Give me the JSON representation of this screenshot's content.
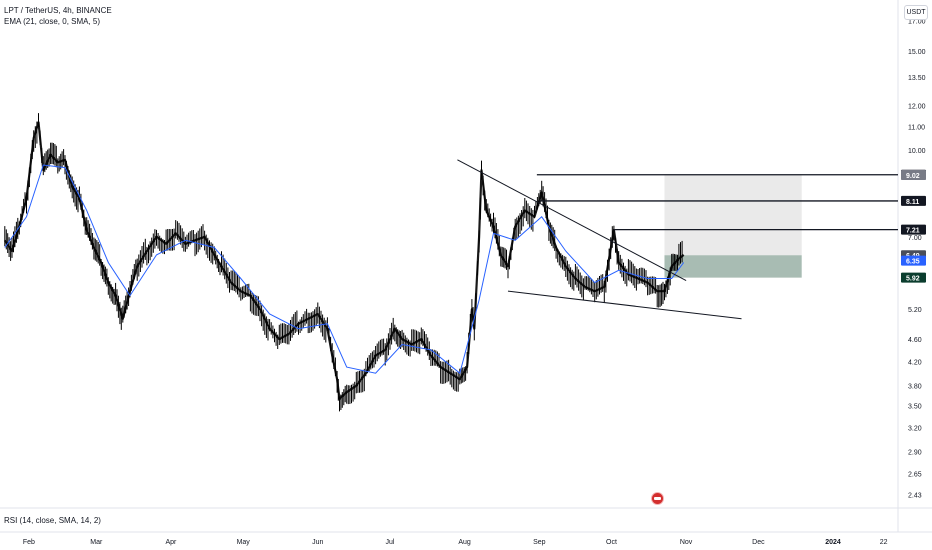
{
  "header": {
    "symbol_line": "LPT / TetherUS, 4h, BINANCE",
    "indicator_line": "EMA (21, close, 0, SMA, 5)",
    "currency_button": "USDT"
  },
  "rsi_panel": {
    "label": "RSI (14, close, SMA, 14, 2)"
  },
  "colors": {
    "candle": "#000000",
    "ema": "#2962ff",
    "target_zone": "#e6e6e6",
    "entry_zone": "#9fb5ab",
    "axis_text": "#131722"
  },
  "chart_data": {
    "type": "line",
    "title": "LPT / TetherUS, 4h, BINANCE",
    "y_scale": "log",
    "ylim": [
      2.3,
      18.5
    ],
    "xlim": [
      "2023-01-20",
      "2024-01-28"
    ],
    "y_ticks": [
      17.0,
      15.0,
      13.5,
      12.0,
      11.0,
      10.0,
      7.0,
      5.2,
      4.6,
      4.2,
      3.8,
      3.5,
      3.2,
      2.9,
      2.65,
      2.43
    ],
    "x_ticks": [
      {
        "label": "Feb",
        "date": "2023-02-01"
      },
      {
        "label": "Mar",
        "date": "2023-03-01"
      },
      {
        "label": "Apr",
        "date": "2023-04-01"
      },
      {
        "label": "May",
        "date": "2023-05-01"
      },
      {
        "label": "Jun",
        "date": "2023-06-01"
      },
      {
        "label": "Jul",
        "date": "2023-07-01"
      },
      {
        "label": "Aug",
        "date": "2023-08-01"
      },
      {
        "label": "Sep",
        "date": "2023-09-01"
      },
      {
        "label": "Oct",
        "date": "2023-10-01"
      },
      {
        "label": "Nov",
        "date": "2023-11-01"
      },
      {
        "label": "Dec",
        "date": "2023-12-01"
      },
      {
        "label": "2024",
        "date": "2024-01-01"
      },
      {
        "label": "22",
        "date": "2024-01-22"
      }
    ],
    "series": [
      {
        "type": "price",
        "points": [
          [
            "2023-01-22",
            6.9
          ],
          [
            "2023-01-25",
            6.6
          ],
          [
            "2023-01-28",
            7.3
          ],
          [
            "2023-01-31",
            8.2
          ],
          [
            "2023-02-03",
            10.5
          ],
          [
            "2023-02-05",
            11.2
          ],
          [
            "2023-02-07",
            9.2
          ],
          [
            "2023-02-10",
            9.8
          ],
          [
            "2023-02-13",
            9.5
          ],
          [
            "2023-02-16",
            9.6
          ],
          [
            "2023-02-19",
            8.6
          ],
          [
            "2023-02-22",
            8.2
          ],
          [
            "2023-02-25",
            7.2
          ],
          [
            "2023-02-28",
            6.7
          ],
          [
            "2023-03-03",
            6.3
          ],
          [
            "2023-03-06",
            5.8
          ],
          [
            "2023-03-09",
            5.5
          ],
          [
            "2023-03-12",
            5.0
          ],
          [
            "2023-03-15",
            5.6
          ],
          [
            "2023-03-18",
            6.2
          ],
          [
            "2023-03-22",
            6.6
          ],
          [
            "2023-03-26",
            7.0
          ],
          [
            "2023-03-30",
            6.8
          ],
          [
            "2023-04-03",
            7.1
          ],
          [
            "2023-04-07",
            6.8
          ],
          [
            "2023-04-11",
            6.9
          ],
          [
            "2023-04-15",
            7.0
          ],
          [
            "2023-04-19",
            6.5
          ],
          [
            "2023-04-22",
            6.2
          ],
          [
            "2023-04-26",
            5.8
          ],
          [
            "2023-04-30",
            5.6
          ],
          [
            "2023-05-04",
            5.5
          ],
          [
            "2023-05-08",
            5.2
          ],
          [
            "2023-05-12",
            4.8
          ],
          [
            "2023-05-16",
            4.6
          ],
          [
            "2023-05-20",
            4.7
          ],
          [
            "2023-05-24",
            4.9
          ],
          [
            "2023-05-28",
            5.0
          ],
          [
            "2023-06-01",
            5.1
          ],
          [
            "2023-06-05",
            4.8
          ],
          [
            "2023-06-07",
            4.3
          ],
          [
            "2023-06-09",
            3.9
          ],
          [
            "2023-06-10",
            3.6
          ],
          [
            "2023-06-13",
            3.7
          ],
          [
            "2023-06-17",
            3.8
          ],
          [
            "2023-06-21",
            4.0
          ],
          [
            "2023-06-25",
            4.3
          ],
          [
            "2023-06-29",
            4.4
          ],
          [
            "2023-07-03",
            4.8
          ],
          [
            "2023-07-06",
            4.6
          ],
          [
            "2023-07-10",
            4.5
          ],
          [
            "2023-07-14",
            4.6
          ],
          [
            "2023-07-18",
            4.3
          ],
          [
            "2023-07-22",
            4.1
          ],
          [
            "2023-07-26",
            4.0
          ],
          [
            "2023-07-30",
            3.9
          ],
          [
            "2023-08-02",
            4.1
          ],
          [
            "2023-08-04",
            5.2
          ],
          [
            "2023-08-05",
            4.8
          ],
          [
            "2023-08-07",
            7.0
          ],
          [
            "2023-08-08",
            9.2
          ],
          [
            "2023-08-10",
            7.8
          ],
          [
            "2023-08-13",
            7.3
          ],
          [
            "2023-08-16",
            6.5
          ],
          [
            "2023-08-19",
            6.2
          ],
          [
            "2023-08-22",
            7.3
          ],
          [
            "2023-08-26",
            7.8
          ],
          [
            "2023-08-30",
            7.6
          ],
          [
            "2023-09-02",
            8.4
          ],
          [
            "2023-09-05",
            7.3
          ],
          [
            "2023-09-08",
            6.7
          ],
          [
            "2023-09-12",
            6.2
          ],
          [
            "2023-09-16",
            5.9
          ],
          [
            "2023-09-20",
            5.7
          ],
          [
            "2023-09-24",
            5.6
          ],
          [
            "2023-09-28",
            5.7
          ],
          [
            "2023-10-02",
            7.2
          ],
          [
            "2023-10-04",
            6.3
          ],
          [
            "2023-10-08",
            6.0
          ],
          [
            "2023-10-12",
            5.9
          ],
          [
            "2023-10-16",
            5.8
          ],
          [
            "2023-10-20",
            5.6
          ],
          [
            "2023-10-23",
            5.6
          ],
          [
            "2023-10-26",
            6.2
          ],
          [
            "2023-10-29",
            6.4
          ],
          [
            "2023-10-31",
            6.5
          ]
        ]
      },
      {
        "name": "EMA (21, close, 0, SMA, 5)",
        "type": "ema",
        "points": [
          [
            "2023-01-22",
            6.7
          ],
          [
            "2023-01-31",
            7.6
          ],
          [
            "2023-02-07",
            9.4
          ],
          [
            "2023-02-16",
            9.3
          ],
          [
            "2023-02-25",
            7.8
          ],
          [
            "2023-03-06",
            6.3
          ],
          [
            "2023-03-15",
            5.5
          ],
          [
            "2023-03-26",
            6.5
          ],
          [
            "2023-04-07",
            6.9
          ],
          [
            "2023-04-19",
            6.7
          ],
          [
            "2023-04-30",
            5.9
          ],
          [
            "2023-05-12",
            5.1
          ],
          [
            "2023-05-24",
            4.8
          ],
          [
            "2023-06-05",
            4.9
          ],
          [
            "2023-06-13",
            4.1
          ],
          [
            "2023-06-25",
            4.0
          ],
          [
            "2023-07-06",
            4.5
          ],
          [
            "2023-07-18",
            4.4
          ],
          [
            "2023-07-30",
            4.0
          ],
          [
            "2023-08-07",
            5.4
          ],
          [
            "2023-08-13",
            7.1
          ],
          [
            "2023-08-22",
            6.9
          ],
          [
            "2023-09-02",
            7.6
          ],
          [
            "2023-09-12",
            6.6
          ],
          [
            "2023-09-24",
            5.8
          ],
          [
            "2023-10-04",
            6.1
          ],
          [
            "2023-10-16",
            5.9
          ],
          [
            "2023-10-26",
            5.9
          ],
          [
            "2023-10-31",
            6.3
          ]
        ]
      }
    ],
    "annotations": {
      "descending_trendline": [
        [
          "2023-07-29",
          9.6
        ],
        [
          "2023-11-01",
          5.85
        ]
      ],
      "support_trendline": [
        [
          "2023-08-19",
          5.6
        ],
        [
          "2023-11-24",
          5.0
        ]
      ],
      "resistance_levels": [
        {
          "value": 9.03,
          "from": "2023-08-31"
        },
        {
          "value": 8.11,
          "from": "2023-09-01"
        },
        {
          "value": 7.21,
          "from": "2023-10-02"
        }
      ],
      "long_position": {
        "from": "2023-10-23",
        "to": "2023-12-19",
        "target": 9.02,
        "entry": 6.49,
        "stop": 5.92
      }
    },
    "price_labels": [
      {
        "value": 9.03,
        "text": "9.03",
        "bg": "#131722",
        "fg": "#ffffff"
      },
      {
        "value": 9.02,
        "text": "9.02",
        "bg": "#787b86",
        "fg": "#ffffff"
      },
      {
        "value": 8.11,
        "text": "8.11",
        "bg": "#131722",
        "fg": "#ffffff"
      },
      {
        "value": 7.21,
        "text": "7.21",
        "bg": "#131722",
        "fg": "#ffffff"
      },
      {
        "value": 6.51,
        "text": "6.51",
        "bg": "none",
        "fg": "#131722"
      },
      {
        "value": 6.49,
        "text": "6.49",
        "bg": "#4a4e5a",
        "fg": "#ffffff"
      },
      {
        "value": 6.35,
        "text": "6.35",
        "bg": "#2962ff",
        "fg": "#ffffff"
      },
      {
        "value": 5.92,
        "text": "5.92",
        "bg": "#0b3d2e",
        "fg": "#ffffff"
      }
    ]
  }
}
